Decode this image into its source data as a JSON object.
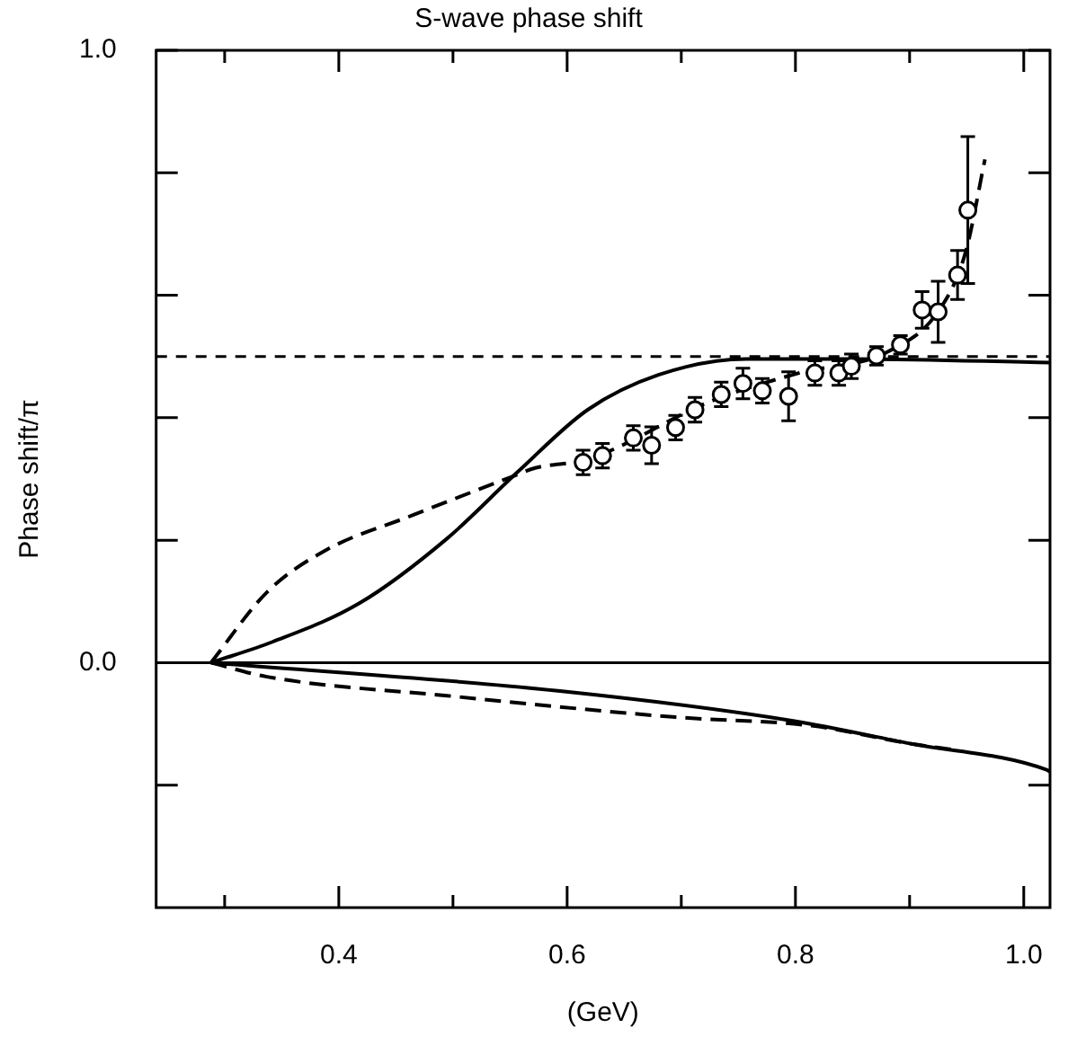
{
  "chart_data": {
    "type": "line",
    "title": "S-wave phase shift",
    "xlabel": "(GeV)",
    "ylabel": "Phase shift/π",
    "xlim": [
      0.24,
      1.023
    ],
    "ylim": [
      -0.4,
      1.0
    ],
    "xticks": [
      {
        "value": 0.3,
        "label": null
      },
      {
        "value": 0.4,
        "label": "0.4"
      },
      {
        "value": 0.5,
        "label": null
      },
      {
        "value": 0.6,
        "label": "0.6"
      },
      {
        "value": 0.7,
        "label": null
      },
      {
        "value": 0.8,
        "label": "0.8"
      },
      {
        "value": 0.9,
        "label": null
      },
      {
        "value": 1.0,
        "label": "1.0"
      }
    ],
    "yticks": [
      {
        "value": -0.2,
        "label": null
      },
      {
        "value": 0.0,
        "label": "0.0"
      },
      {
        "value": 0.2,
        "label": null
      },
      {
        "value": 0.4,
        "label": null
      },
      {
        "value": 0.6,
        "label": null
      },
      {
        "value": 0.8,
        "label": null
      },
      {
        "value": 1.0,
        "label": "1.0"
      }
    ],
    "grid": false,
    "legend": false,
    "ref_lines": [
      {
        "axis": "y",
        "value": 0.5,
        "color": "#000000",
        "line_style": "dashed"
      },
      {
        "axis": "y",
        "value": 0,
        "color": "#000000",
        "line_style": "solid"
      }
    ],
    "series": [
      {
        "type": "scatter",
        "color": "#000000",
        "marker": "circle",
        "x": [
          0.614,
          0.631,
          0.658,
          0.674,
          0.695,
          0.712,
          0.735,
          0.754,
          0.771,
          0.794,
          0.817,
          0.838,
          0.849,
          0.871,
          0.892,
          0.911,
          0.925,
          0.942,
          0.951
        ],
        "values": [
          0.327,
          0.338,
          0.367,
          0.355,
          0.384,
          0.413,
          0.438,
          0.456,
          0.444,
          0.435,
          0.473,
          0.473,
          0.484,
          0.501,
          0.519,
          0.576,
          0.573,
          0.633,
          0.739
        ],
        "errors": [
          0.02,
          0.02,
          0.02,
          0.03,
          0.02,
          0.02,
          0.02,
          0.025,
          0.02,
          0.04,
          0.02,
          0.02,
          0.02,
          0.015,
          0.015,
          0.03,
          0.05,
          0.04,
          0.12
        ]
      },
      {
        "color": "#000000",
        "marker": "none",
        "line_style": "solid",
        "x": [
          0.288,
          0.342,
          0.418,
          0.495,
          0.557,
          0.618,
          0.68,
          0.757,
          0.849,
          1.023
        ],
        "values": [
          0,
          0.034,
          0.097,
          0.203,
          0.312,
          0.413,
          0.47,
          0.496,
          0.496,
          0.49
        ]
      },
      {
        "color": "#000000",
        "marker": "none",
        "line_style": "dashed",
        "x": [
          0.288,
          0.337,
          0.388,
          0.465,
          0.552,
          0.572,
          0.618,
          0.726,
          0.803,
          0.88,
          0.926,
          0.949,
          0.966
        ],
        "values": [
          0,
          0.115,
          0.183,
          0.241,
          0.304,
          0.318,
          0.332,
          0.427,
          0.473,
          0.507,
          0.576,
          0.67,
          0.822
        ]
      },
      {
        "color": "#000000",
        "marker": "none",
        "line_style": "solid",
        "x": [
          0.288,
          0.592,
          0.798,
          0.9,
          1.02,
          1.023
        ],
        "values": [
          0,
          -0.046,
          -0.095,
          -0.132,
          -0.175,
          -0.178
        ]
      },
      {
        "color": "#000000",
        "marker": "none",
        "line_style": "dashed",
        "x": [
          0.288,
          0.337,
          0.495,
          0.695,
          0.814,
          0.9,
          0.942
        ],
        "values": [
          0,
          -0.023,
          -0.054,
          -0.089,
          -0.103,
          -0.132,
          -0.143
        ]
      }
    ]
  }
}
